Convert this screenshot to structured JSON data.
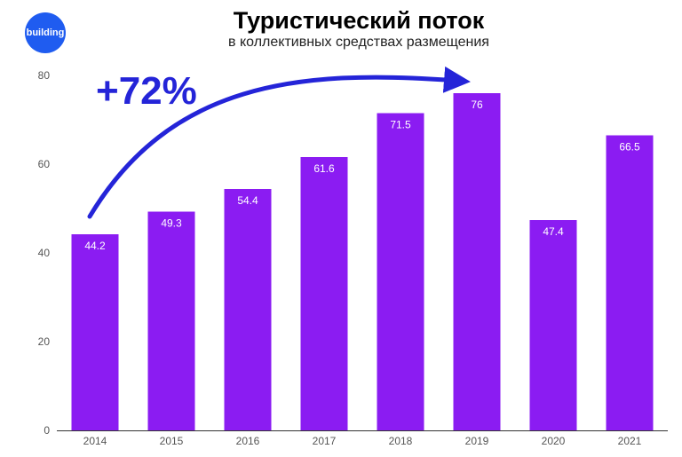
{
  "brand": {
    "logo_text": "building",
    "logo_color": "#1f5cf0"
  },
  "chart_data": {
    "type": "bar",
    "title": "Туристический поток",
    "subtitle": "в коллективных средствах размещения",
    "categories": [
      "2014",
      "2015",
      "2016",
      "2017",
      "2018",
      "2019",
      "2020",
      "2021"
    ],
    "values": [
      44.2,
      49.3,
      54.4,
      61.6,
      71.5,
      76,
      47.4,
      66.5
    ],
    "data_labels": [
      "44.2",
      "49.3",
      "54.4",
      "61.6",
      "71.5",
      "76",
      "47.4",
      "66.5"
    ],
    "ylim": [
      0,
      80
    ],
    "yticks": [
      0,
      20,
      40,
      60,
      80
    ],
    "grid": false,
    "bar_color": "#8b1cf2",
    "annotation": {
      "text": "+72%",
      "color": "#2424d8",
      "from": "2014",
      "to": "2019"
    }
  }
}
